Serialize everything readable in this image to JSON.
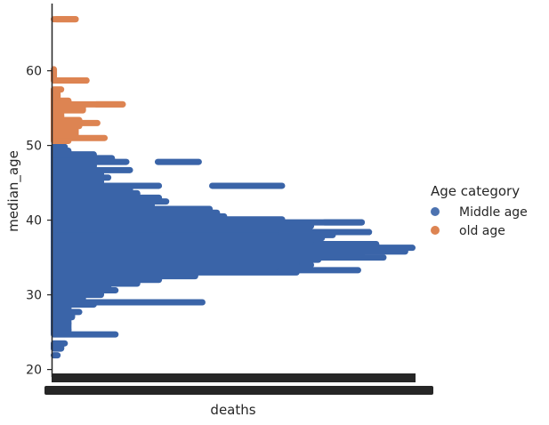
{
  "chart_data": {
    "type": "scatter",
    "title": "",
    "xlabel": "deaths",
    "ylabel": "median_age",
    "ylim": [
      19,
      69
    ],
    "yticks": [
      20,
      30,
      40,
      50,
      60
    ],
    "grid": false,
    "x_ticks_unreadable": true,
    "legend": {
      "title": "Age category",
      "placement": "right",
      "entries": [
        {
          "name": "Middle age",
          "color": "#4c72b0"
        },
        {
          "name": "old age",
          "color": "#dd8452"
        }
      ]
    },
    "series": [
      {
        "name": "Middle age",
        "color": "#3a64a8",
        "x_extent_per_median_age": [
          [
            21.9,
            0.02
          ],
          [
            22.8,
            0.03
          ],
          [
            23.5,
            0.04
          ],
          [
            24.7,
            0.18
          ],
          [
            25.3,
            0.05
          ],
          [
            26.2,
            0.05
          ],
          [
            27.0,
            0.06
          ],
          [
            27.7,
            0.08
          ],
          [
            28.3,
            0.05
          ],
          [
            28.7,
            0.12
          ],
          [
            29.0,
            0.42
          ],
          [
            29.6,
            0.09
          ],
          [
            30.0,
            0.14
          ],
          [
            30.6,
            0.18
          ],
          [
            31.0,
            0.16
          ],
          [
            31.5,
            0.24
          ],
          [
            32.0,
            0.3
          ],
          [
            32.5,
            0.4
          ],
          [
            33.0,
            0.68
          ],
          [
            33.3,
            0.85
          ],
          [
            33.7,
            0.62
          ],
          [
            34.0,
            0.72
          ],
          [
            34.3,
            0.68
          ],
          [
            34.7,
            0.74
          ],
          [
            35.0,
            0.92
          ],
          [
            35.4,
            0.86
          ],
          [
            35.8,
            0.98
          ],
          [
            36.1,
            0.92
          ],
          [
            36.3,
            1.0
          ],
          [
            36.8,
            0.9
          ],
          [
            37.2,
            0.72
          ],
          [
            37.6,
            0.75
          ],
          [
            38.0,
            0.78
          ],
          [
            38.4,
            0.88
          ],
          [
            38.8,
            0.64
          ],
          [
            39.2,
            0.72
          ],
          [
            39.7,
            0.86
          ],
          [
            40.1,
            0.64
          ],
          [
            40.5,
            0.48
          ],
          [
            41.0,
            0.46
          ],
          [
            41.5,
            0.44
          ],
          [
            42.0,
            0.28
          ],
          [
            42.5,
            0.32
          ],
          [
            43.0,
            0.3
          ],
          [
            43.6,
            0.24
          ],
          [
            44.2,
            0.22
          ],
          [
            44.6,
            0.3
          ],
          [
            45.2,
            0.14
          ],
          [
            45.7,
            0.16
          ],
          [
            46.2,
            0.14
          ],
          [
            46.7,
            0.22
          ],
          [
            47.3,
            0.12
          ],
          [
            47.8,
            0.21
          ],
          [
            48.3,
            0.17
          ],
          [
            48.8,
            0.12
          ],
          [
            49.3,
            0.05
          ],
          [
            49.8,
            0.04
          ]
        ],
        "x_gap_islands": [
          [
            44.6,
            0.43,
            0.64
          ],
          [
            39.7,
            0.74,
            0.86
          ],
          [
            38.4,
            0.62,
            0.88
          ],
          [
            47.8,
            0.28,
            0.41
          ]
        ]
      },
      {
        "name": "old age",
        "color": "#dd8452",
        "x_extent_per_median_age": [
          [
            50.6,
            0.05
          ],
          [
            51.0,
            0.15
          ],
          [
            51.9,
            0.07
          ],
          [
            52.6,
            0.08
          ],
          [
            53.0,
            0.13
          ],
          [
            53.4,
            0.08
          ],
          [
            54.0,
            0.03
          ],
          [
            54.7,
            0.09
          ],
          [
            55.5,
            0.2
          ],
          [
            56.0,
            0.05
          ],
          [
            56.7,
            0.02
          ],
          [
            57.5,
            0.03
          ],
          [
            58.7,
            0.1
          ],
          [
            59.6,
            0.01
          ],
          [
            60.2,
            0.01
          ],
          [
            66.9,
            0.07
          ]
        ],
        "x_gap_islands": [
          [
            66.9,
            0.0,
            0.07
          ],
          [
            58.7,
            0.05,
            0.1
          ],
          [
            55.5,
            0.11,
            0.2
          ]
        ]
      }
    ]
  }
}
